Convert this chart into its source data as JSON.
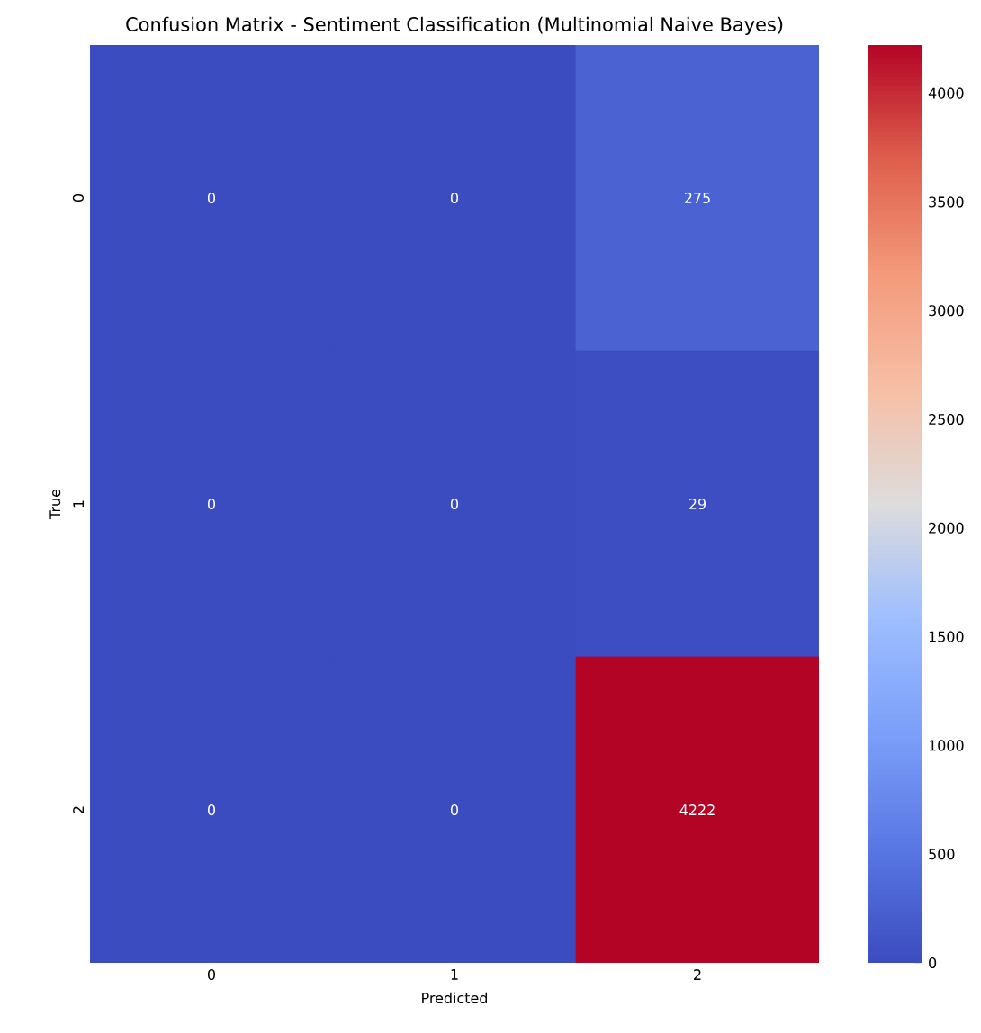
{
  "chart_data": {
    "type": "heatmap",
    "title": "Confusion Matrix - Sentiment Classification (Multinomial Naive Bayes)",
    "xlabel": "Predicted",
    "ylabel": "True",
    "categories": [
      "0",
      "1",
      "2"
    ],
    "y_categories": [
      "0",
      "1",
      "2"
    ],
    "cells": [
      [
        0,
        0,
        275
      ],
      [
        0,
        0,
        29
      ],
      [
        0,
        0,
        4222
      ]
    ],
    "clim": [
      0,
      4222
    ],
    "cticks": [
      0,
      500,
      1000,
      1500,
      2000,
      2500,
      3000,
      3500,
      4000
    ],
    "data_labels": true
  }
}
